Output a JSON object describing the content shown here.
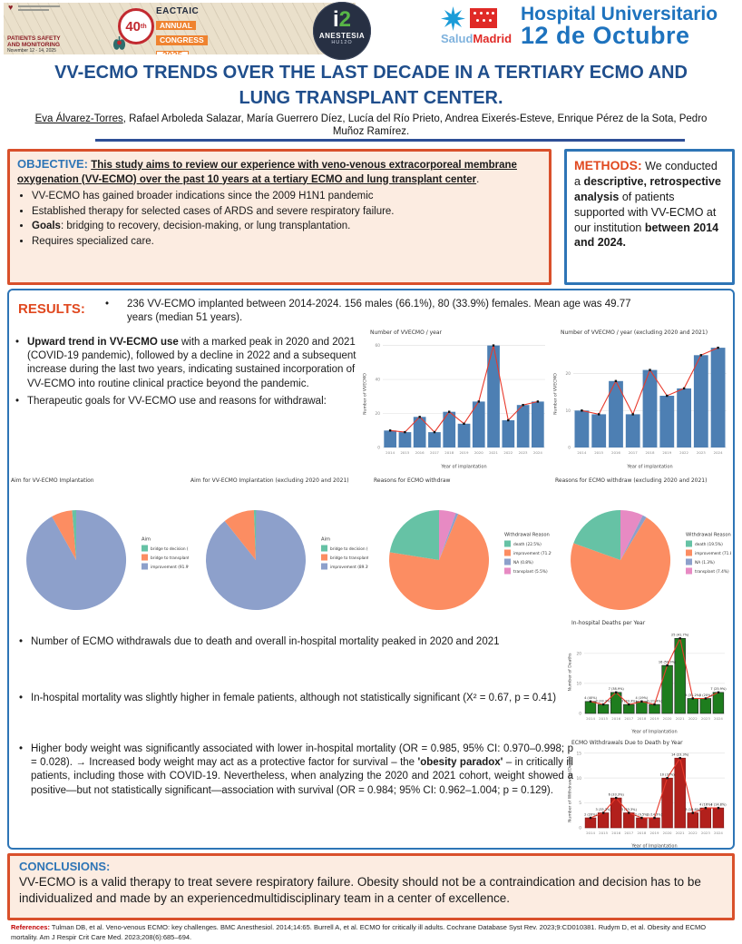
{
  "colors": {
    "title_blue": "#1f4e8c",
    "section_blue": "#2e75b6",
    "accent_orange": "#e0481f",
    "box_peach": "#fcece1",
    "bar_blue": "#4d7fb3",
    "line_red": "#e8392b",
    "green_bar": "#1e7d1e",
    "dark_red_bar": "#b2201c",
    "pie_green": "#66c2a5",
    "pie_orange": "#fc8d62",
    "pie_blue": "#8da0cb",
    "pie_pink": "#e78ac3"
  },
  "header": {
    "congress": {
      "name": "EACTAIC",
      "annual": "ANNUAL",
      "congress_word": "CONGRESS",
      "year": "2025",
      "number": "40",
      "number_suffix": "th",
      "topic1": "PATIENTS SAFETY",
      "topic2": "AND MONITORING",
      "dates": "November 12 - 14, 2025"
    },
    "anesthesia": {
      "i_char": "i",
      "two_char": "2",
      "name": "ANESTESIA",
      "sub": "HU12O"
    },
    "hospital": {
      "salud": "Salud",
      "madrid": "Madrid",
      "line1": "Hospital Universitario",
      "line2": "12 de Octubre"
    }
  },
  "title": "VV-ECMO TRENDS OVER THE LAST DECADE IN A TERTIARY ECMO AND LUNG TRANSPLANT CENTER.",
  "authors": {
    "first": "Eva Álvarez-Torres",
    "rest": ", Rafael Arboleda Salazar, María Guerrero Díez, Lucía del Río Prieto, Andrea Eixerés-Esteve, Enrique Pérez de la Sota, Pedro Muñoz Ramírez."
  },
  "objective": {
    "label": "OBJECTIVE:",
    "intro": "This study aims to review our experience with veno-venous extracorporeal membrane oxygenation (VV-ECMO) over the past 10 years at a tertiary ECMO and lung transplant center",
    "intro_period": ".",
    "b1": "VV-ECMO has gained broader indications since the 2009 H1N1 pandemic",
    "b2": "Established therapy for selected cases of ARDS and severe respiratory failure.",
    "b3_bold": "Goals",
    "b3_rest": ": bridging to recovery, decision-making, or lung transplantation.",
    "b4": "Requires specialized care."
  },
  "methods": {
    "label": "METHODS:",
    "m1": "We conducted a ",
    "m2": "descriptive, retrospective analysis",
    "m3": " of patients supported with VV-ECMO at our institution ",
    "m4": "between 2014 and 2024."
  },
  "results": {
    "label": "RESULTS:",
    "r1": "236 VV-ECMO implanted between 2014-2024. 156 males (66.1%), 80 (33.9%) females. Mean age was 49.77 years (median 51 years).",
    "r2_bold": "Upward trend in VV-ECMO use",
    "r2_rest": " with a marked peak in 2020 and 2021 (COVID-19 pandemic), followed by a decline in 2022 and a subsequent increase during the last two years, indicating sustained incorporation of VV-ECMO into routine clinical practice beyond the pandemic.",
    "r3": "Therapeutic goals for VV-ECMO use and reasons for withdrawal:",
    "r4": "Number of ECMO withdrawals due to death and overall in-hospital mortality peaked in 2020 and 2021",
    "r5": "In-hospital mortality was slightly higher in female patients, although not statistically significant (X² = 0.67, p = 0.41)",
    "r6_pre": "Higher body weight was significantly associated with lower in-hospital mortality (OR = 0.985, 95% CI: 0.970–0.998; p = 0.028). → Increased body weight may act as a protective factor for survival – the ",
    "r6_bold": "'obesity paradox'",
    "r6_post": " – in critically ill patients, including those with COVID-19. Nevertheless, when analyzing the 2020 and 2021 cohort, weight showed a positive—but not statistically significant—association with survival (OR = 0.984; 95% CI: 0.962–1.004; p = 0.129)."
  },
  "conclusions": {
    "label": "CONCLUSIONS:",
    "text": "VV-ECMO is a valid therapy to treat severe respiratory failure. Obesity should not be a contraindication and decision has to be individualized and made by an experiencedmultidisciplinary team in a center of excellence."
  },
  "references": {
    "label": "References:",
    "text": " Tulman DB, et al. Veno-venous ECMO: key challenges. BMC Anesthesiol. 2014;14:65. Burrell A, et al. ECMO for critically ill adults. Cochrane Database Syst Rev. 2023;9:CD010381.  Rudym D, et al. Obesity and ECMO mortality. Am J Respir Crit Care Med. 2023;208(6):685–694."
  },
  "chart_data": [
    {
      "type": "bar",
      "title": "Number of VVECMO / year",
      "categories": [
        "2014",
        "2015",
        "2016",
        "2017",
        "2018",
        "2019",
        "2020",
        "2021",
        "2022",
        "2023",
        "2024"
      ],
      "values": [
        10,
        9,
        18,
        9,
        21,
        14,
        27,
        60,
        16,
        25,
        27
      ],
      "xlabel": "Year of implantation",
      "ylabel": "Number of VVECMO",
      "yticks": [
        0,
        20,
        40,
        60
      ],
      "ylim": [
        0,
        63
      ],
      "bar_color": "#4d7fb3",
      "line_color": "#e8392b",
      "grid": true,
      "ml": 24
    },
    {
      "type": "bar",
      "title": "Number of VVECMO / year (excluding 2020 and 2021)",
      "categories": [
        "2014",
        "2015",
        "2016",
        "2017",
        "2018",
        "2019",
        "2022",
        "2023",
        "2024"
      ],
      "values": [
        10,
        9,
        18,
        9,
        21,
        14,
        16,
        25,
        27
      ],
      "xlabel": "Year of implantation",
      "ylabel": "Number of VVECMO",
      "yticks": [
        0,
        10,
        20
      ],
      "ylim": [
        0,
        29
      ],
      "bar_color": "#4d7fb3",
      "line_color": "#e8392b",
      "grid": true,
      "ml": 24
    },
    {
      "type": "pie",
      "title": "Aim for VV-ECMO Implantation",
      "legend_title": "Aim",
      "legend_position": "right",
      "slices": [
        {
          "label": "bridge to decision (1.3%)",
          "value": 1.3,
          "color": "#66c2a5"
        },
        {
          "label": "bridge to transplant (6.8%)",
          "value": 6.8,
          "color": "#fc8d62"
        },
        {
          "label": "improvement (91.9%)",
          "value": 91.9,
          "color": "#8da0cb"
        }
      ]
    },
    {
      "type": "pie",
      "title": "Aim for VV-ECMO Implantation (excluding 2020 and 2021)",
      "legend_title": "Aim",
      "legend_position": "right",
      "slices": [
        {
          "label": "bridge to decision (0.7%)",
          "value": 0.7,
          "color": "#66c2a5"
        },
        {
          "label": "bridge to transplant (10.1%)",
          "value": 10.1,
          "color": "#fc8d62"
        },
        {
          "label": "improvement (89.3%)",
          "value": 89.3,
          "color": "#8da0cb"
        }
      ]
    },
    {
      "type": "pie",
      "title": "Reasons for ECMO withdraw",
      "legend_title": "Withdrawal Reason",
      "legend_position": "right",
      "slices": [
        {
          "label": "death (22.5%)",
          "value": 22.5,
          "color": "#66c2a5"
        },
        {
          "label": "improvement (71.2%)",
          "value": 71.2,
          "color": "#fc8d62"
        },
        {
          "label": "NA (0.8%)",
          "value": 0.8,
          "color": "#8da0cb"
        },
        {
          "label": "transplant (5.5%)",
          "value": 5.5,
          "color": "#e78ac3"
        }
      ]
    },
    {
      "type": "pie",
      "title": "Reasons for ECMO withdraw (excluding 2020 and 2021)",
      "legend_title": "Withdrawal Reason",
      "legend_position": "right",
      "slices": [
        {
          "label": "death (19.5%)",
          "value": 19.5,
          "color": "#66c2a5"
        },
        {
          "label": "improvement (71.8%)",
          "value": 71.8,
          "color": "#fc8d62"
        },
        {
          "label": "NA (1.3%)",
          "value": 1.3,
          "color": "#8da0cb"
        },
        {
          "label": "transplant (7.4%)",
          "value": 7.4,
          "color": "#e78ac3"
        }
      ]
    },
    {
      "type": "bar",
      "title": "In-hospital Deaths per Year",
      "categories": [
        "2014",
        "2015",
        "2016",
        "2017",
        "2018",
        "2019",
        "2020",
        "2021",
        "2022",
        "2023",
        "2024"
      ],
      "values": [
        4,
        3,
        7,
        3,
        4,
        3,
        16,
        25,
        5,
        5,
        7
      ],
      "labels": [
        "4 (40%)",
        "3 (33.3%)",
        "7 (38.9%)",
        "3 (33.3%)",
        "4 (19%)",
        "3 (21.4%)",
        "16 (59.3%)",
        "25 (41.7%)",
        "5 (31.2%)",
        "5 (20%)",
        "7 (25.9%)"
      ],
      "xlabel": "Year of Implantation",
      "ylabel": "Number of Deaths",
      "yticks": [
        0,
        10,
        20
      ],
      "ylim": [
        0,
        27.5
      ],
      "bar_color": "#1e7d1e",
      "bar_stroke": "#222",
      "line_color": "#e8392b",
      "grid": true,
      "ml": 20,
      "mb": 24
    },
    {
      "type": "bar",
      "title": "ECMO Withdrawals Due to Death by Year",
      "categories": [
        "2014",
        "2015",
        "2016",
        "2017",
        "2018",
        "2019",
        "2020",
        "2021",
        "2022",
        "2023",
        "2024"
      ],
      "values": [
        2,
        3,
        6,
        3,
        2,
        2,
        10,
        14,
        3,
        4,
        4
      ],
      "labels": [
        "2 (20%)",
        "3 (33.3%)",
        "6 (33.3%)",
        "3 (33.3%)",
        "2 (9.5%)",
        "2 (14.3%)",
        "10 (37%)",
        "14 (23.3%)",
        "3 (18.8%)",
        "4 (16%)",
        "4 (14.8%)"
      ],
      "xlabel": "Year of Implantation",
      "ylabel": "Number of Withdrawals (Death)",
      "yticks": [
        0,
        5,
        10,
        15
      ],
      "ylim": [
        0,
        15.5
      ],
      "bar_color": "#b2201c",
      "bar_stroke": "#7a1010",
      "line_color": "#e8392b",
      "grid": true,
      "ml": 20,
      "mb": 24
    }
  ]
}
